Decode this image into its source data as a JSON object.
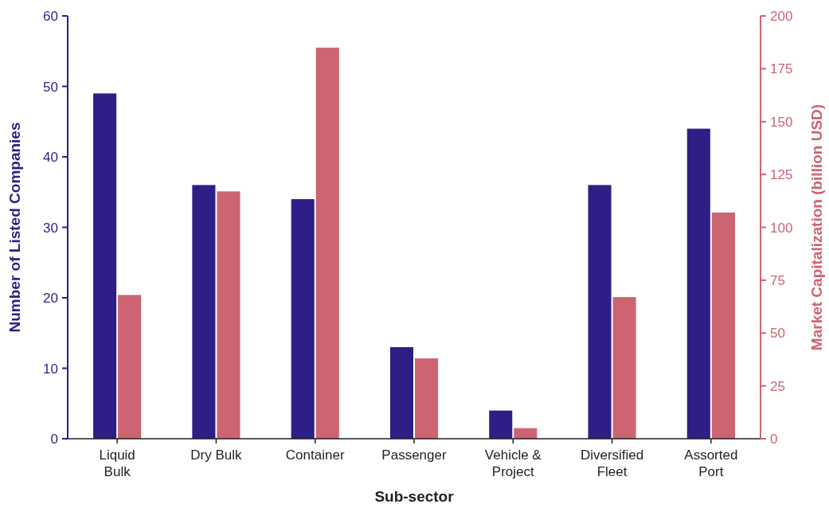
{
  "chart_data": {
    "type": "bar",
    "xlabel": "Sub-sector",
    "ylabel": "Number of Listed Companies",
    "y2label": "Market Capitalization (billion USD)",
    "categories": [
      "Liquid Bulk",
      "Dry Bulk",
      "Container",
      "Passenger",
      "Vehicle & Project",
      "Diversified Fleet",
      "Assorted Port"
    ],
    "series": [
      {
        "color": "#2e1f86",
        "values": [
          49,
          36,
          34,
          13,
          4,
          36,
          44
        ]
      },
      {
        "color": "#cc6472",
        "axis": "y2",
        "values": [
          68,
          117,
          185,
          38,
          5,
          67,
          107
        ]
      }
    ],
    "ylim": [
      0,
      60
    ],
    "yticks": [
      0,
      10,
      20,
      30,
      40,
      50,
      60
    ],
    "y2lim": [
      0,
      200
    ],
    "y2ticks": [
      0,
      25,
      50,
      75,
      100,
      125,
      150,
      175,
      200
    ],
    "grid": false
  }
}
